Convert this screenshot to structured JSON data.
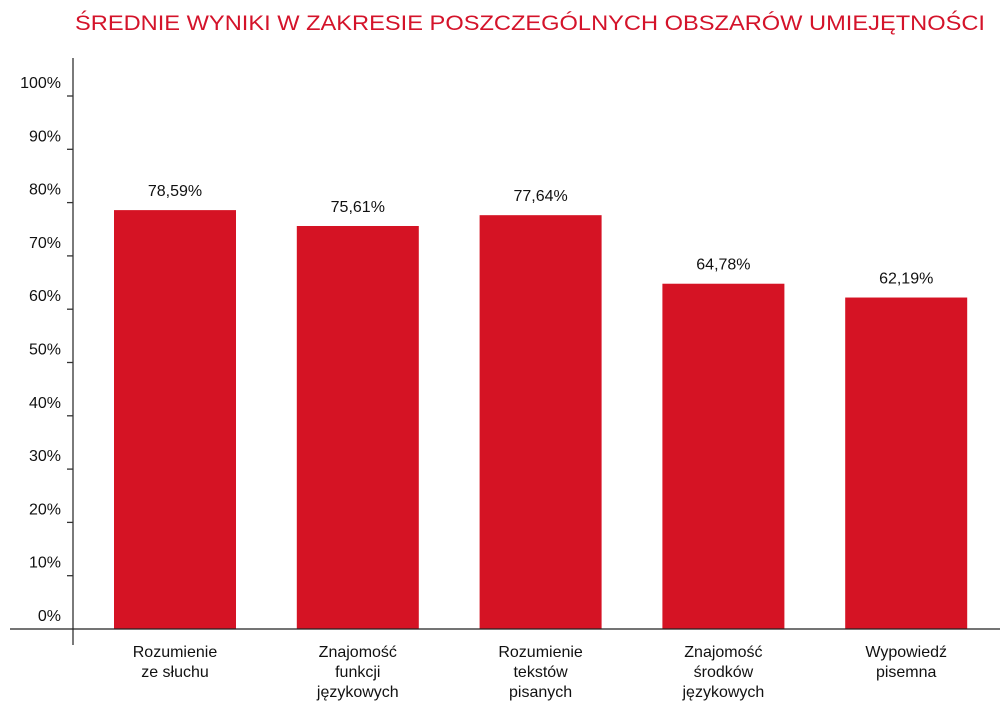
{
  "chart_data": {
    "type": "bar",
    "title": "ŚREDNIE WYNIKI W ZAKRESIE POSZCZEGÓLNYCH OBSZARÓW UMIEJĘTNOŚCI",
    "categories": [
      [
        "Rozumienie",
        "ze słuchu"
      ],
      [
        "Znajomość",
        "funkcji",
        "językowych"
      ],
      [
        "Rozumienie",
        "tekstów",
        "pisanych"
      ],
      [
        "Znajomość",
        "środków",
        "językowych"
      ],
      [
        "Wypowiedź",
        "pisemna"
      ]
    ],
    "values": [
      78.59,
      75.61,
      77.64,
      64.78,
      62.19
    ],
    "data_labels": [
      "78,59%",
      "75,61%",
      "77,64%",
      "64,78%",
      "62,19%"
    ],
    "ylim": [
      0,
      100
    ],
    "yticks": [
      0,
      10,
      20,
      30,
      40,
      50,
      60,
      70,
      80,
      90,
      100
    ],
    "ytick_labels": [
      "0%",
      "10%",
      "20%",
      "30%",
      "40%",
      "50%",
      "60%",
      "70%",
      "80%",
      "90%",
      "100%"
    ],
    "xlabel": "",
    "ylabel": "",
    "grid": false,
    "bar_color": "#d51324",
    "title_color": "#d4132a"
  }
}
